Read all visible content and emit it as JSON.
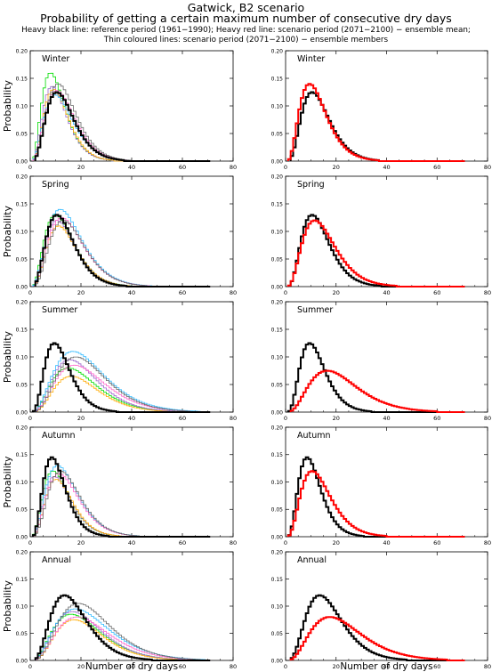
{
  "header": {
    "title": "Gatwick, B2 scenario",
    "subtitle": "Probability of getting a certain maximum number of consecutive dry days",
    "legend_line1": "Heavy black line: reference period (1961−1990); Heavy red line: scenario period (2071−2100) − ensemble mean;",
    "legend_line2": "Thin coloured lines: scenario period (2071−2100) − ensemble members"
  },
  "colors": {
    "reference": "#000000",
    "ensemble_mean": "#ff0000",
    "members": [
      "#00dd00",
      "#9966cc",
      "#ffaa00",
      "#33bbff",
      "#ff66cc",
      "#666666"
    ]
  },
  "chart_data": {
    "type": "line",
    "xlabel": "Number of dry days",
    "ylabel": "Probability",
    "xlim": [
      0,
      80
    ],
    "ylim": [
      0,
      0.2
    ],
    "xticks": [
      0,
      20,
      40,
      60,
      80
    ],
    "yticks": [
      0.0,
      0.05,
      0.1,
      0.15,
      0.2
    ],
    "ytick_labels": [
      "0.00",
      "0.05",
      "0.10",
      "0.15",
      "0.20"
    ],
    "grid": false,
    "panels": [
      {
        "season": "Winter",
        "reference": {
          "peak_day": 10,
          "peak_prob": 0.125
        },
        "ensemble_mean": {
          "peak_day": 9,
          "peak_prob": 0.14
        },
        "members_peak_prob": [
          0.16,
          0.135,
          0.13,
          0.12,
          0.128,
          0.14
        ]
      },
      {
        "season": "Spring",
        "reference": {
          "peak_day": 10,
          "peak_prob": 0.13
        },
        "ensemble_mean": {
          "peak_day": 11,
          "peak_prob": 0.12
        },
        "members_peak_prob": [
          0.13,
          0.12,
          0.11,
          0.14,
          0.125,
          0.12
        ]
      },
      {
        "season": "Summer",
        "reference": {
          "peak_day": 9,
          "peak_prob": 0.125
        },
        "ensemble_mean": {
          "peak_day": 16,
          "peak_prob": 0.075
        },
        "members_peak_prob": [
          0.08,
          0.095,
          0.065,
          0.11,
          0.085,
          0.1
        ]
      },
      {
        "season": "Autumn",
        "reference": {
          "peak_day": 8,
          "peak_prob": 0.145
        },
        "ensemble_mean": {
          "peak_day": 10,
          "peak_prob": 0.12
        },
        "members_peak_prob": [
          0.12,
          0.11,
          0.105,
          0.13,
          0.115,
          0.12
        ]
      },
      {
        "season": "Annual",
        "reference": {
          "peak_day": 13,
          "peak_prob": 0.12
        },
        "ensemble_mean": {
          "peak_day": 17,
          "peak_prob": 0.08
        },
        "members_peak_prob": [
          0.085,
          0.09,
          0.075,
          0.095,
          0.08,
          0.105
        ]
      }
    ]
  }
}
